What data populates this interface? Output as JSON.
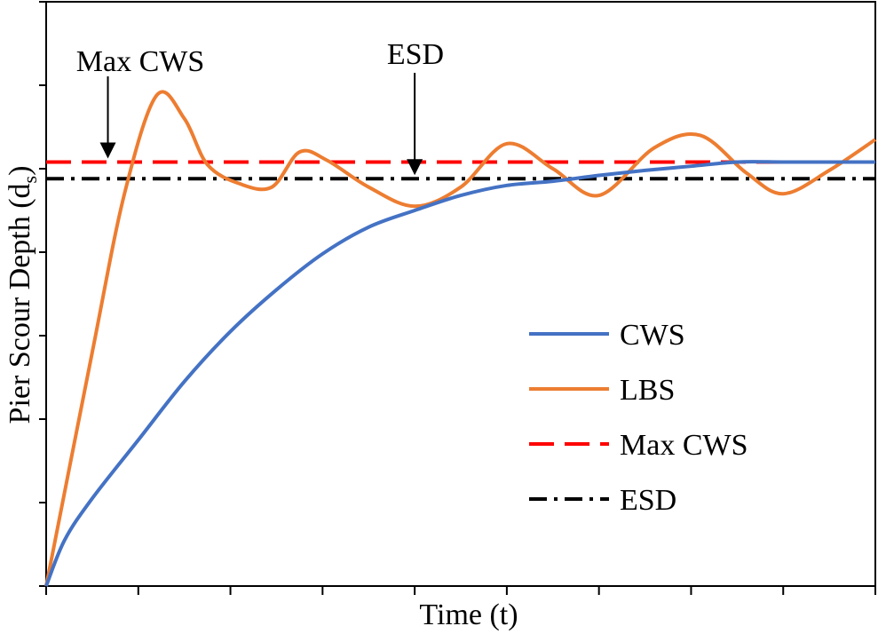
{
  "chart_data": {
    "type": "line",
    "title": "",
    "xlabel": "Time (t)",
    "ylabel_main": "Pier Scour Depth (d",
    "ylabel_sub": "s",
    "ylabel_close": ")",
    "xlim": [
      0,
      9
    ],
    "ylim": [
      0,
      7
    ],
    "x_ticks": [
      0,
      1,
      2,
      3,
      4,
      5,
      6,
      7,
      8,
      9
    ],
    "y_ticks": [
      0,
      1,
      2,
      3,
      4,
      5,
      6,
      7
    ],
    "tick_labels_shown": false,
    "grid": false,
    "legend_position": "center-right",
    "series": [
      {
        "name": "CWS",
        "color": "#4472C4",
        "style": "solid",
        "x": [
          0,
          0.2,
          0.5,
          1,
          1.5,
          2,
          2.5,
          3,
          3.5,
          4,
          4.5,
          5,
          5.5,
          6,
          6.5,
          7,
          7.5,
          8,
          8.5,
          9
        ],
        "y": [
          0,
          0.55,
          1.05,
          1.75,
          2.45,
          3.05,
          3.55,
          3.98,
          4.3,
          4.5,
          4.68,
          4.8,
          4.85,
          4.92,
          4.98,
          5.03,
          5.08,
          5.08,
          5.08,
          5.08
        ]
      },
      {
        "name": "LBS",
        "color": "#ED7D31",
        "style": "solid",
        "x": [
          0,
          0.5,
          0.85,
          1.2,
          1.5,
          1.75,
          2.1,
          2.45,
          2.75,
          3.05,
          3.5,
          4.0,
          4.5,
          5.0,
          5.5,
          6.0,
          6.6,
          7.1,
          7.6,
          8.0,
          8.5,
          9
        ],
        "y": [
          0,
          2.8,
          4.7,
          5.88,
          5.6,
          5.05,
          4.82,
          4.78,
          5.2,
          5.1,
          4.78,
          4.55,
          4.78,
          5.3,
          5.0,
          4.68,
          5.25,
          5.4,
          4.95,
          4.7,
          4.98,
          5.35
        ]
      },
      {
        "name": "Max CWS",
        "color": "#FF0000",
        "style": "dashed",
        "x": [
          0,
          9
        ],
        "y": [
          5.08,
          5.08
        ]
      },
      {
        "name": "ESD",
        "color": "#000000",
        "style": "dashdot",
        "x": [
          0,
          9
        ],
        "y": [
          4.88,
          4.88
        ]
      }
    ],
    "annotations": [
      {
        "text": "Max CWS",
        "arrow_x": 0.67,
        "arrow_to_y": 5.08
      },
      {
        "text": "ESD",
        "arrow_x": 4.0,
        "arrow_to_y": 4.88
      }
    ],
    "legend": [
      {
        "label": "CWS",
        "color": "#4472C4",
        "style": "solid"
      },
      {
        "label": "LBS",
        "color": "#ED7D31",
        "style": "solid"
      },
      {
        "label": "Max CWS",
        "color": "#FF0000",
        "style": "dashed"
      },
      {
        "label": "ESD",
        "color": "#000000",
        "style": "dashdot"
      }
    ]
  }
}
